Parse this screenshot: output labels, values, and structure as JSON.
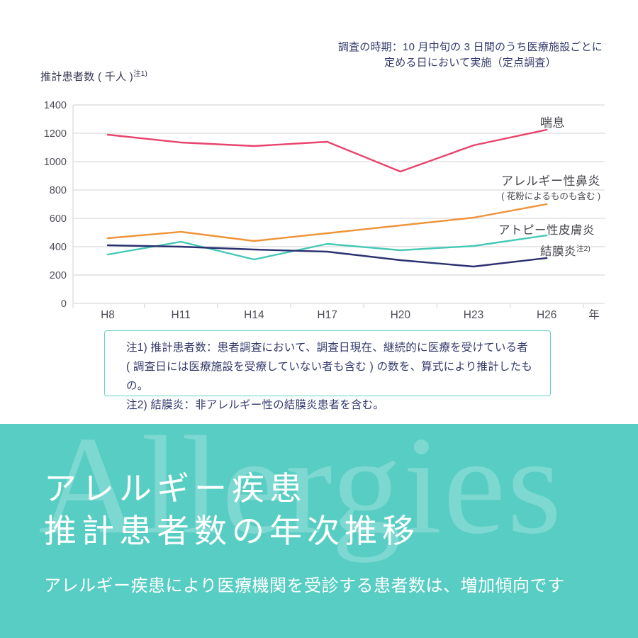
{
  "annotation": {
    "line1": "調査の時期：10 月中旬の 3 日間のうち医療施設ごとに",
    "line2": "定める日において実施（定点調査）"
  },
  "y_axis": {
    "label": "推計患者数 ( 千人 )",
    "note_ref": "注1)"
  },
  "x_axis": {
    "unit": "年"
  },
  "chart_data": {
    "type": "line",
    "categories": [
      "H8",
      "H11",
      "H14",
      "H17",
      "H20",
      "H23",
      "H26"
    ],
    "series": [
      {
        "name": "喘息",
        "color": "#E8436B",
        "values": [
          1190,
          1135,
          1110,
          1140,
          930,
          1115,
          1225
        ]
      },
      {
        "name": "アレルギー性鼻炎",
        "sublabel": "( 花粉によるものも含む )",
        "color": "#EF9338",
        "values": [
          460,
          505,
          440,
          495,
          550,
          605,
          700
        ]
      },
      {
        "name": "アトピー性皮膚炎",
        "color": "#45C8B5",
        "values": [
          345,
          435,
          310,
          420,
          375,
          405,
          480
        ]
      },
      {
        "name": "結膜炎",
        "note_ref": "注2)",
        "color": "#2B3170",
        "values": [
          410,
          400,
          380,
          365,
          305,
          260,
          320
        ]
      }
    ],
    "ylim": [
      0,
      1400
    ],
    "yticks": [
      0,
      200,
      400,
      600,
      800,
      1000,
      1200,
      1400
    ],
    "grid": true,
    "legend_position": "right-of-line-ends",
    "title": "アレルギー疾患 推計患者数の年次推移",
    "xlabel": "年",
    "ylabel": "推計患者数 ( 千人 )"
  },
  "notes": {
    "line1": "注1) 推計患者数：患者調査において、調査日現在、継続的に医療を受けている者",
    "line2": "( 調査日には医療施設を受療していない者も含む ) の数を、算式により推計したもの。",
    "line3": "注2) 結膜炎：非アレルギー性の結膜炎患者を含む。"
  },
  "banner": {
    "watermark": "Allergies",
    "title_line1": "アレルギー疾患",
    "title_line2": "推計患者数の年次推移",
    "subtitle": "アレルギー疾患により医療機関を受診する患者数は、増加傾向です"
  },
  "colors": {
    "asthma_line": "#E8436B",
    "rhinitis_line": "#EF9338",
    "dermatitis_line": "#45C8B5",
    "conjunctivitis_line": "#2B3170",
    "gridline": "#DBDBDB",
    "axis_text": "#4D4D58",
    "note_text": "#333A6B",
    "banner_background": "#58CDC3",
    "note_box_border": "#5ED1C8"
  }
}
